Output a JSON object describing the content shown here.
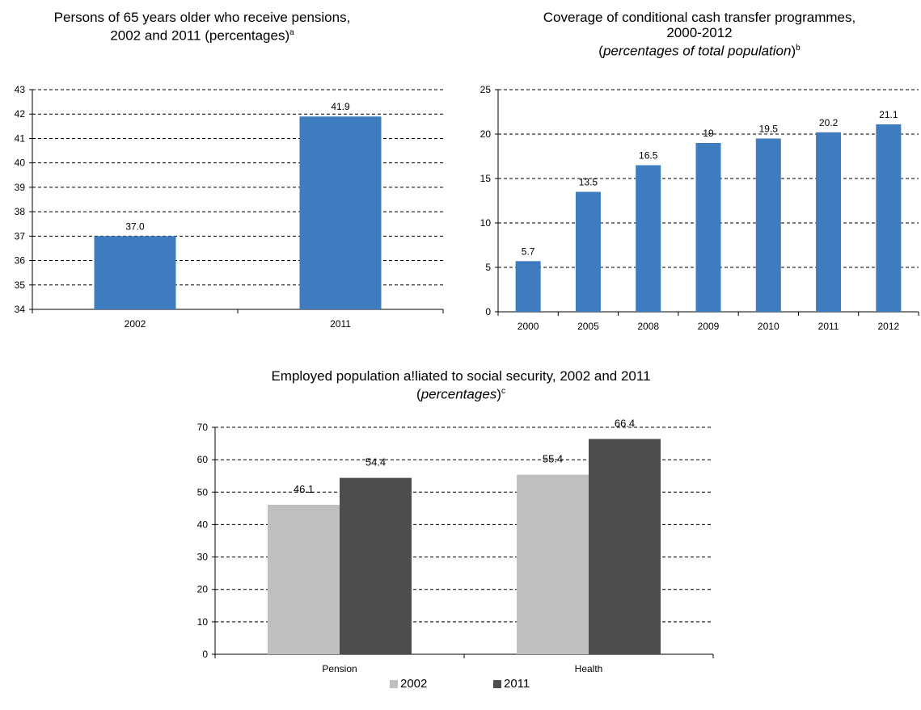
{
  "chart_data": [
    {
      "type": "bar",
      "title_line1": "Persons of 65 years older who receive pensions,",
      "title_line2": "2002 and 2011 (percentages)",
      "title_note": "a",
      "categories": [
        "2002",
        "2011"
      ],
      "values": [
        37.0,
        41.9
      ],
      "value_labels": [
        "37.0",
        "41.9"
      ],
      "ylim": [
        34,
        43
      ],
      "yticks": [
        "34",
        "35",
        "36",
        "37",
        "38",
        "39",
        "40",
        "41",
        "42",
        "43"
      ],
      "grid": "dashed",
      "color": "#3f7bbf"
    },
    {
      "type": "bar",
      "title_line1": "Coverage of conditional cash transfer programmes,",
      "title_line2": "2000-2012",
      "title_line3_italic": "percentages of total population",
      "title_note": "b",
      "categories": [
        "2000",
        "2005",
        "2008",
        "2009",
        "2010",
        "2011",
        "2012"
      ],
      "values": [
        5.7,
        13.5,
        16.5,
        19,
        19.5,
        20.2,
        21.1
      ],
      "value_labels": [
        "5.7",
        "13.5",
        "16.5",
        "19",
        "19.5",
        "20.2",
        "21.1"
      ],
      "ylim": [
        0,
        25
      ],
      "yticks": [
        "0",
        "5",
        "10",
        "15",
        "20",
        "25"
      ],
      "grid": "dashed",
      "color": "#3f7bbf"
    },
    {
      "type": "bar",
      "title_line1": "Employed population a!liated to social security, 2002 and 2011",
      "title_line2_italic": "percentages",
      "title_note": "c",
      "categories": [
        "Pension",
        "Health"
      ],
      "series": [
        {
          "name": "2002",
          "values": [
            46.1,
            55.4
          ],
          "value_labels": [
            "46.1",
            "55.4"
          ],
          "color": "#bfbfbf"
        },
        {
          "name": "2011",
          "values": [
            54.4,
            66.4
          ],
          "value_labels": [
            "54.4",
            "66.4"
          ],
          "color": "#4d4d4d"
        }
      ],
      "ylim": [
        0,
        70
      ],
      "yticks": [
        "0",
        "10",
        "20",
        "30",
        "40",
        "50",
        "60",
        "70"
      ],
      "grid": "dashed",
      "legend": "bottom"
    }
  ]
}
